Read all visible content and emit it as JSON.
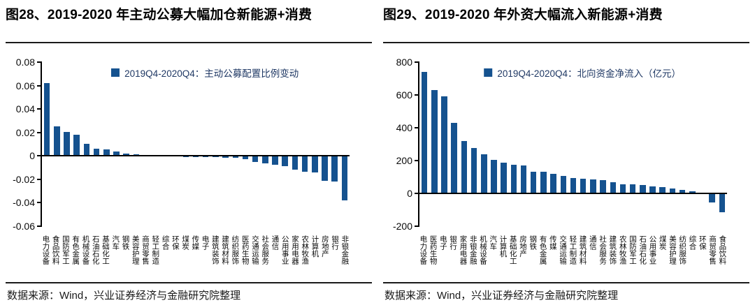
{
  "colors": {
    "bar": "#15528F",
    "legend_text": "#1F3864",
    "axis": "#000000"
  },
  "panels": [
    {
      "title": "图28、2019-2020 年主动公募大幅加仓新能源+消费",
      "source": "数据来源：Wind，兴业证券经济与金融研究院整理",
      "chart_data": {
        "type": "bar",
        "legend": "2019Q4-2020Q4：主动公募配置比例变动",
        "legend_position": "top-center",
        "grid": false,
        "bar_color": "#15528F",
        "ylim": [
          -0.06,
          0.08
        ],
        "ytick_values": [
          0.08,
          0.06,
          0.04,
          0.02,
          0,
          -0.02,
          -0.04,
          -0.06
        ],
        "ytick_labels": [
          "0.08",
          "0.06",
          "0.04",
          "0.02",
          "0",
          "-0.02",
          "-0.04",
          "-0.06"
        ],
        "categories": [
          "电力设备",
          "食品饮料",
          "国防军工",
          "有色金属",
          "机械设备",
          "石油石化",
          "基础化工",
          "汽车",
          "钢铁",
          "美容护理",
          "商贸零售",
          "轻工制造",
          "综合",
          "环保",
          "煤炭",
          "传媒",
          "电子",
          "建筑装饰",
          "建筑材料",
          "纺织服饰",
          "医药生物",
          "交通运输",
          "社会服务",
          "通信",
          "公用事业",
          "家用电器",
          "农林牧渔",
          "计算机",
          "房地产",
          "银行",
          "非银金融"
        ],
        "values": [
          0.062,
          0.025,
          0.0205,
          0.018,
          0.0105,
          0.0063,
          0.0058,
          0.0035,
          0.0018,
          0.0014,
          0.001,
          0.0006,
          0.0004,
          -0.0004,
          -0.0008,
          -0.001,
          -0.0011,
          -0.0013,
          -0.0015,
          -0.0017,
          -0.0028,
          -0.005,
          -0.0064,
          -0.0075,
          -0.0087,
          -0.012,
          -0.0135,
          -0.014,
          -0.021,
          -0.022,
          -0.038
        ]
      }
    },
    {
      "title": "图29、2019-2020 年外资大幅流入新能源+消费",
      "source": "数据来源：Wind，兴业证券经济与金融研究院整理",
      "chart_data": {
        "type": "bar",
        "legend": "2019Q4-2020Q4：北向资金净流入（亿元）",
        "legend_position": "top-center",
        "grid": false,
        "bar_color": "#15528F",
        "ylim": [
          -200,
          800
        ],
        "ytick_values": [
          800,
          600,
          400,
          200,
          0,
          -200
        ],
        "ytick_labels": [
          "800",
          "600",
          "400",
          "200",
          "0",
          "-200"
        ],
        "categories": [
          "电力设备",
          "医药生物",
          "电子",
          "银行",
          "家用电器",
          "非银金融",
          "机械设备",
          "汽车",
          "计算机",
          "基础化工",
          "房地产",
          "钢铁",
          "有色金属",
          "传媒",
          "交通运输",
          "轻工制造",
          "建筑材料",
          "通信",
          "社会服务",
          "建筑装饰",
          "农林牧渔",
          "国防军工",
          "石油石化",
          "公用事业",
          "煤炭",
          "美容护理",
          "纺织服饰",
          "综合",
          "环保",
          "商贸零售",
          "食品饮料"
        ],
        "values": [
          740,
          630,
          590,
          430,
          320,
          278,
          240,
          205,
          187,
          176,
          172,
          134,
          132,
          118,
          107,
          92,
          88,
          85,
          82,
          66,
          57,
          54,
          52,
          42,
          38,
          30,
          21,
          12,
          -5,
          -55,
          -113
        ]
      }
    }
  ]
}
